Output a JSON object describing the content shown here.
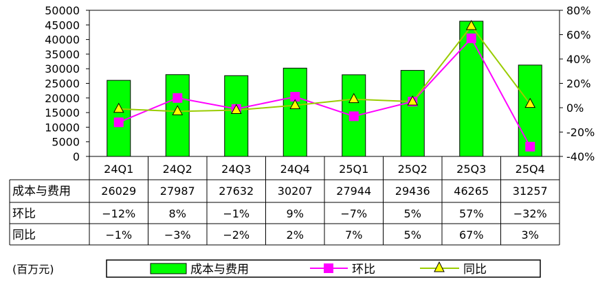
{
  "chart_data": {
    "type": "bar",
    "categories": [
      "24Q1",
      "24Q2",
      "24Q3",
      "24Q4",
      "25Q1",
      "25Q2",
      "25Q3",
      "25Q4"
    ],
    "series": [
      {
        "name": "成本与费用",
        "kind": "bar",
        "axis": "left",
        "color": "#00ff00",
        "values": [
          26029,
          27987,
          27632,
          30207,
          27944,
          29436,
          46265,
          31257
        ]
      },
      {
        "name": "环比",
        "kind": "line",
        "axis": "right",
        "color": "#ff00ff",
        "marker": "square",
        "values": [
          -12,
          8,
          -1,
          9,
          -7,
          5,
          57,
          -32
        ]
      },
      {
        "name": "同比",
        "kind": "line",
        "axis": "right",
        "color": "#99cc00",
        "marker": "triangle",
        "marker_fill": "#ffff00",
        "values": [
          -1,
          -3,
          -2,
          2,
          7,
          5,
          67,
          3
        ]
      }
    ],
    "left_axis": {
      "min": 0,
      "max": 50000,
      "step": 5000,
      "ticks": [
        "0",
        "5000",
        "10000",
        "15000",
        "20000",
        "25000",
        "30000",
        "35000",
        "40000",
        "45000",
        "50000"
      ]
    },
    "right_axis": {
      "min": -40,
      "max": 80,
      "step": 20,
      "ticks": [
        "-40%",
        "-20%",
        "0%",
        "20%",
        "40%",
        "60%",
        "80%"
      ]
    },
    "table": {
      "rows": [
        {
          "label": "成本与费用",
          "cells": [
            "26029",
            "27987",
            "27632",
            "30207",
            "27944",
            "29436",
            "46265",
            "31257"
          ]
        },
        {
          "label": "环比",
          "cells": [
            "−12%",
            "8%",
            "−1%",
            "9%",
            "−7%",
            "5%",
            "57%",
            "−32%"
          ]
        },
        {
          "label": "同比",
          "cells": [
            "−1%",
            "−3%",
            "−2%",
            "2%",
            "7%",
            "5%",
            "67%",
            "3%"
          ]
        }
      ]
    },
    "unit_note": "(百万元)",
    "legend": [
      "成本与费用",
      "环比",
      "同比"
    ],
    "legend_position": "bottom",
    "grid": false
  }
}
